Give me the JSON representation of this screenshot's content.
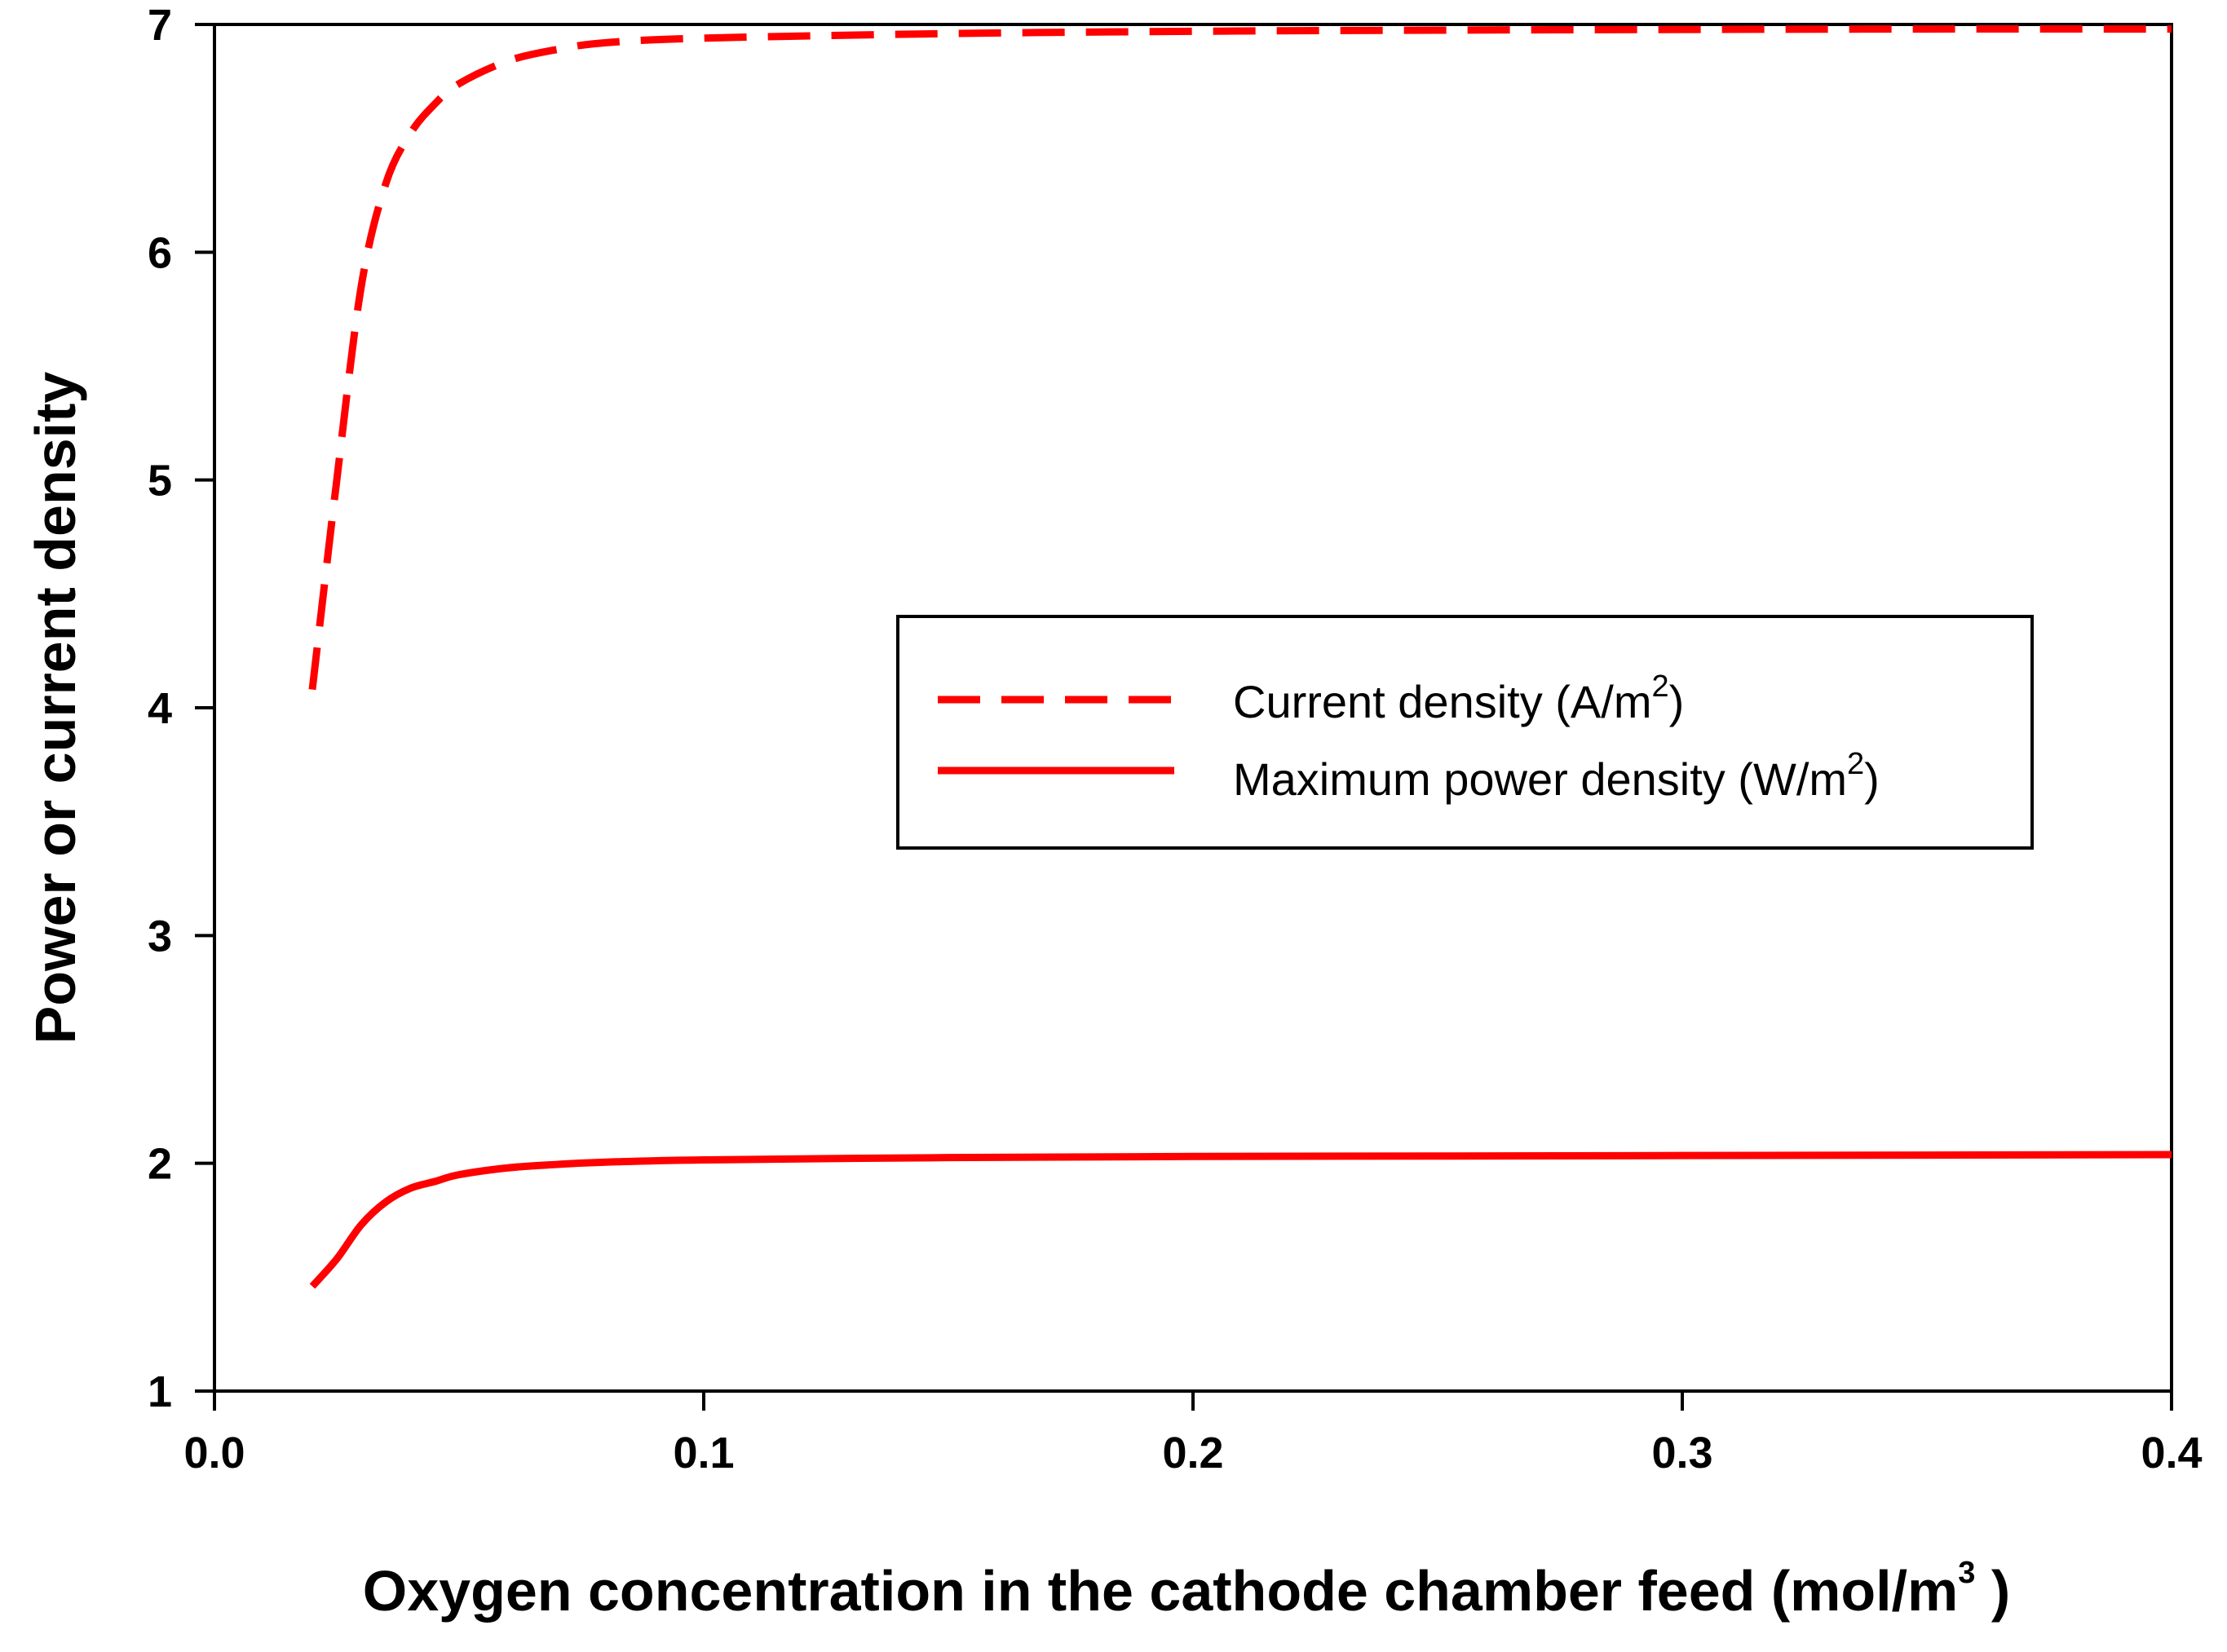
{
  "chart_data": {
    "type": "line",
    "xlabel": "Oxygen concentration in the cathode chamber feed (mol/m",
    "xlabel_sup": "3",
    "xlabel_end": " )",
    "ylabel": "Power or current density",
    "xlim": [
      0.0,
      0.4
    ],
    "ylim": [
      1,
      7
    ],
    "x_ticks": [
      0.0,
      0.1,
      0.2,
      0.3,
      0.4
    ],
    "x_tick_labels": [
      "0.0",
      "0.1",
      "0.2",
      "0.3",
      "0.4"
    ],
    "y_ticks": [
      1,
      2,
      3,
      4,
      5,
      6,
      7
    ],
    "y_tick_labels": [
      "1",
      "2",
      "3",
      "4",
      "5",
      "6",
      "7"
    ],
    "grid": false,
    "legend_position": "center-right",
    "series": [
      {
        "name": "Current density (A/m2)",
        "legend_label": "Current density (A/m",
        "legend_sup": "2",
        "legend_end": ")",
        "color": "#ff0000",
        "style": "dashed",
        "x": [
          0.02,
          0.025,
          0.03,
          0.035,
          0.04,
          0.045,
          0.05,
          0.06,
          0.07,
          0.08,
          0.1,
          0.15,
          0.2,
          0.25,
          0.3,
          0.35,
          0.4
        ],
        "y": [
          4.08,
          5.0,
          5.85,
          6.3,
          6.52,
          6.65,
          6.74,
          6.84,
          6.89,
          6.92,
          6.94,
          6.96,
          6.97,
          6.975,
          6.978,
          6.98,
          6.98
        ]
      },
      {
        "name": "Maximum power density (W/m2)",
        "legend_label": "Maximum power density (W/m",
        "legend_sup": "2",
        "legend_end": ")",
        "color": "#ff0000",
        "style": "solid",
        "x": [
          0.02,
          0.025,
          0.03,
          0.035,
          0.04,
          0.045,
          0.05,
          0.06,
          0.07,
          0.08,
          0.1,
          0.15,
          0.2,
          0.25,
          0.3,
          0.35,
          0.4
        ],
        "y": [
          1.46,
          1.58,
          1.73,
          1.83,
          1.89,
          1.92,
          1.95,
          1.98,
          1.995,
          2.005,
          2.015,
          2.025,
          2.03,
          2.032,
          2.034,
          2.036,
          2.038
        ]
      }
    ]
  }
}
